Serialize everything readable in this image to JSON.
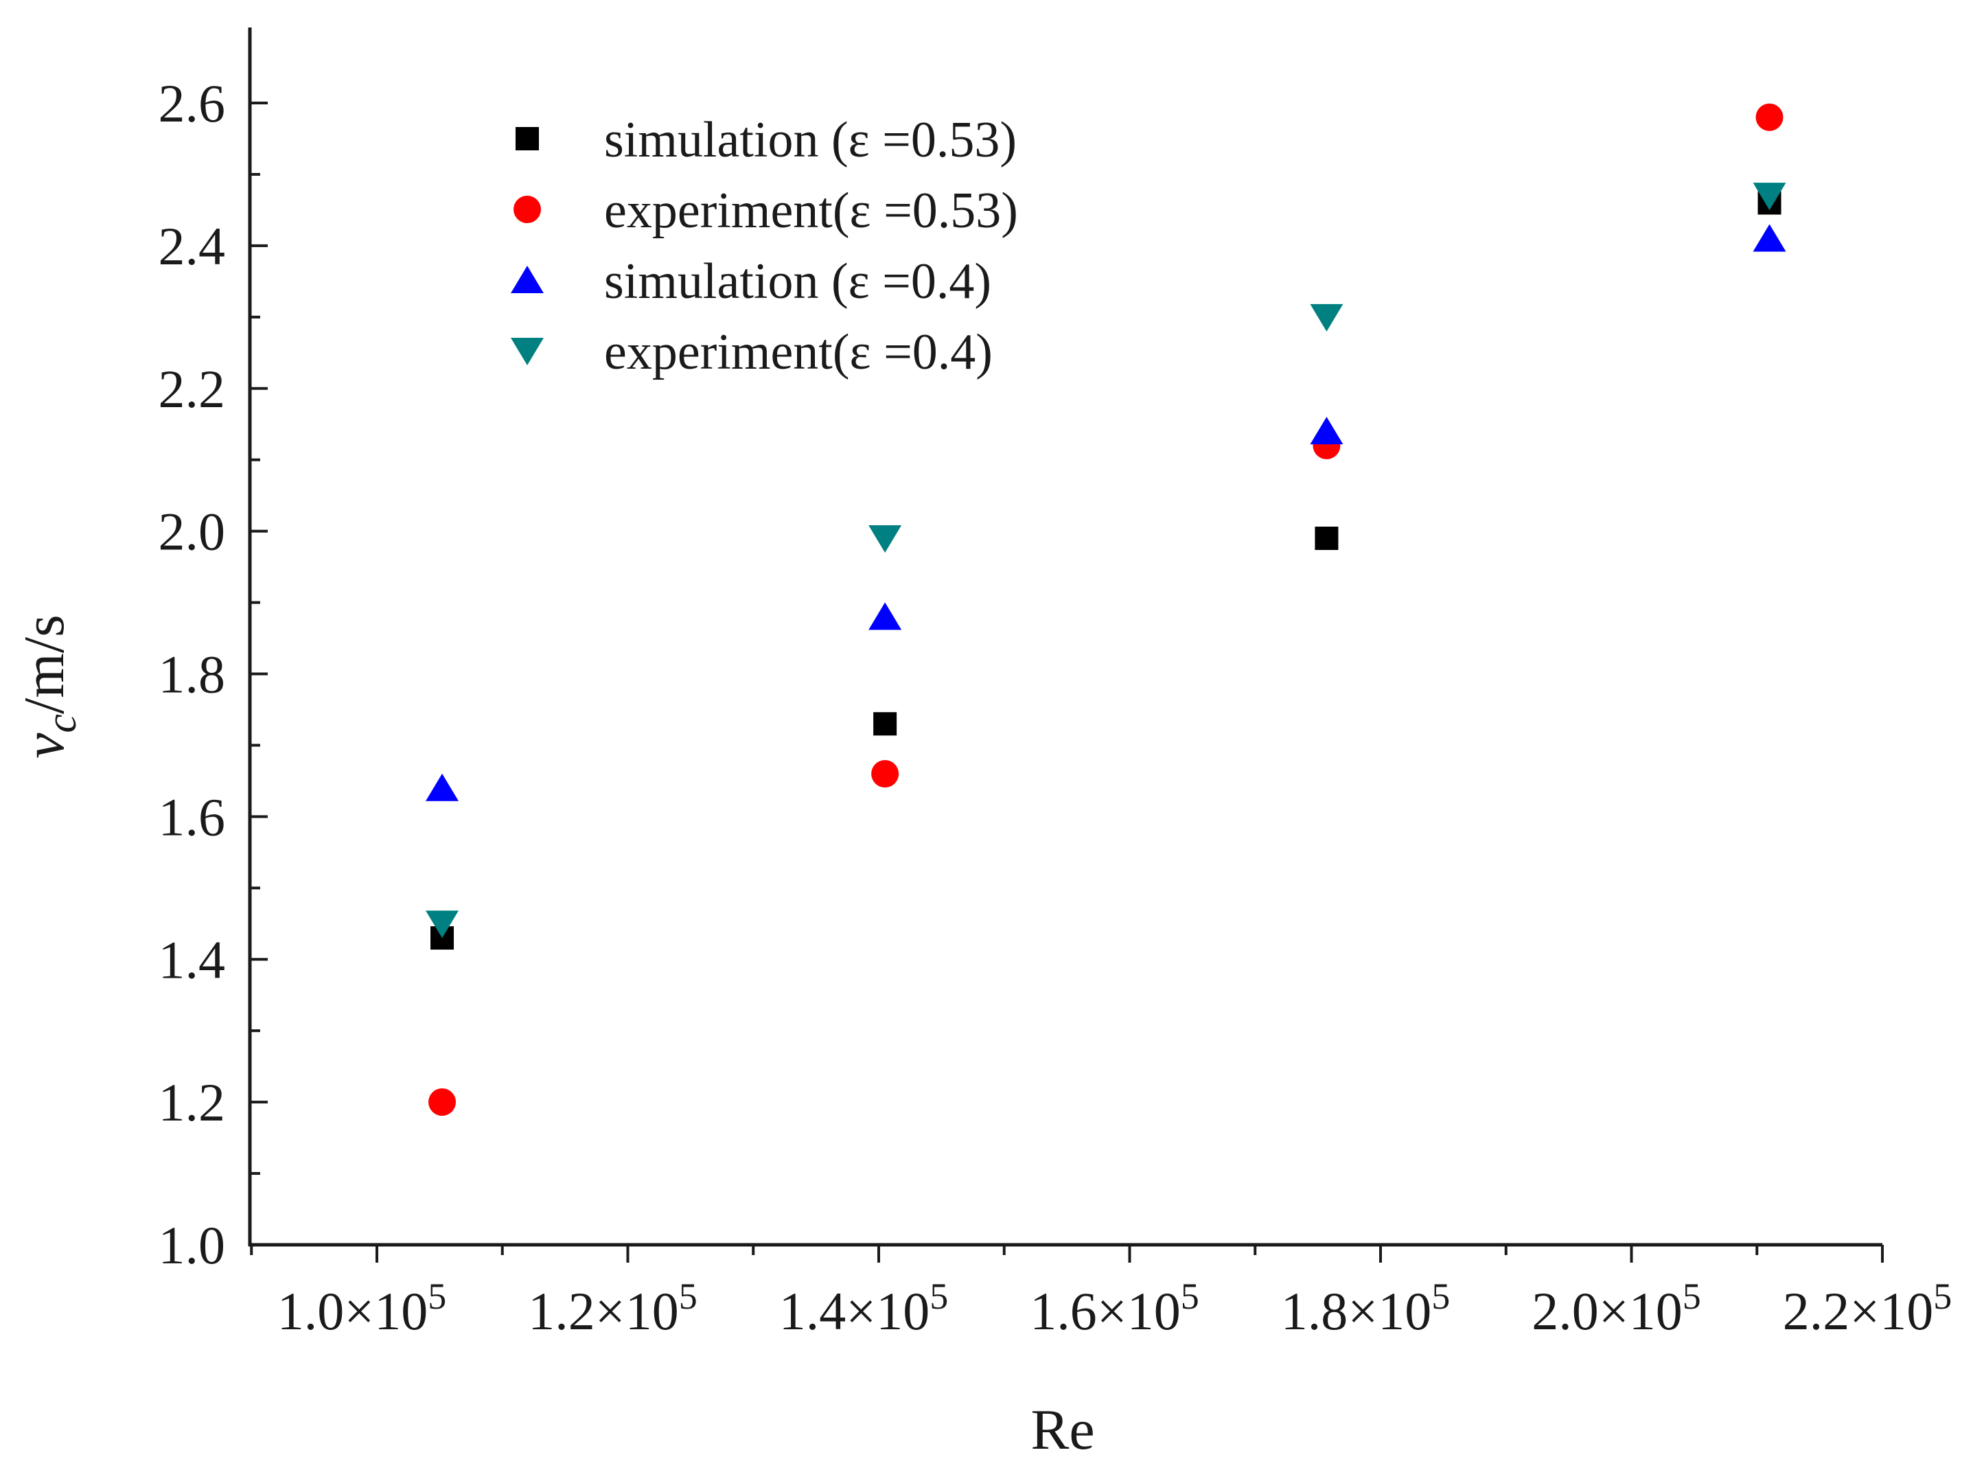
{
  "chart_data": {
    "type": "scatter",
    "title": "",
    "xlabel": "Re",
    "ylabel_main": "v",
    "ylabel_sub": "c",
    "ylabel_unit": "/m/s",
    "xlim": [
      91000,
      221000
    ],
    "ylim": [
      1.0,
      2.7
    ],
    "x_ticks": [
      100000,
      120000,
      140000,
      160000,
      180000,
      200000,
      220000
    ],
    "x_tick_labels": [
      {
        "mantissa": "1.0×10",
        "exp": "5"
      },
      {
        "mantissa": "1.2×10",
        "exp": "5"
      },
      {
        "mantissa": "1.4×10",
        "exp": "5"
      },
      {
        "mantissa": "1.6×10",
        "exp": "5"
      },
      {
        "mantissa": "1.8×10",
        "exp": "5"
      },
      {
        "mantissa": "2.0×10",
        "exp": "5"
      },
      {
        "mantissa": "2.2×10",
        "exp": "5"
      }
    ],
    "y_ticks": [
      1.0,
      1.2,
      1.4,
      1.6,
      1.8,
      2.0,
      2.2,
      2.4,
      2.6
    ],
    "y_tick_labels": [
      "1.0",
      "1.2",
      "1.4",
      "1.6",
      "1.8",
      "2.0",
      "2.2",
      "2.4",
      "2.6"
    ],
    "grid": false,
    "legend_position": "top-left",
    "series": [
      {
        "name": "simulation (ε  =0.53)",
        "marker": "square",
        "color": "#000000",
        "x": [
          105200,
          140500,
          175700,
          211000
        ],
        "y": [
          1.43,
          1.73,
          1.99,
          2.46
        ]
      },
      {
        "name": "experiment(ε  =0.53)",
        "marker": "circle",
        "color": "#ff0000",
        "x": [
          105200,
          140500,
          175700,
          211000
        ],
        "y": [
          1.2,
          1.66,
          2.12,
          2.58
        ]
      },
      {
        "name": "simulation (ε  =0.4)",
        "marker": "triangle-up",
        "color": "#0000ff",
        "x": [
          105200,
          140500,
          175700,
          211000
        ],
        "y": [
          1.64,
          1.88,
          2.14,
          2.41
        ]
      },
      {
        "name": "experiment(ε  =0.4)",
        "marker": "triangle-down",
        "color": "#008080",
        "x": [
          105200,
          140500,
          175700,
          211000
        ],
        "y": [
          1.45,
          1.99,
          2.3,
          2.47
        ]
      }
    ]
  }
}
